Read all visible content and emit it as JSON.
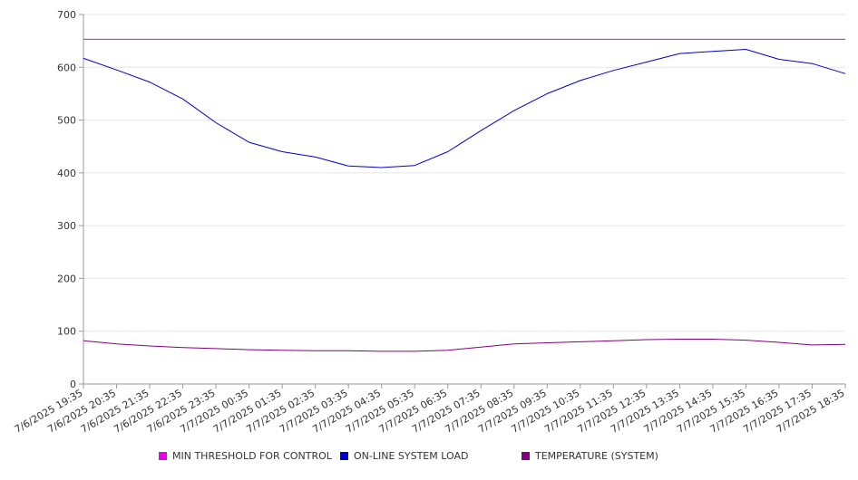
{
  "chart_data": {
    "type": "line",
    "title": "",
    "xlabel": "",
    "ylabel": "",
    "ylim": [
      0,
      700
    ],
    "yticks": [
      0,
      100,
      200,
      300,
      400,
      500,
      600,
      700
    ],
    "grid": true,
    "legend_position": "bottom",
    "x": [
      "7/6/2025 19:35",
      "7/6/2025 20:35",
      "7/6/2025 21:35",
      "7/6/2025 22:35",
      "7/6/2025 23:35",
      "7/7/2025 00:35",
      "7/7/2025 01:35",
      "7/7/2025 02:35",
      "7/7/2025 03:35",
      "7/7/2025 04:35",
      "7/7/2025 05:35",
      "7/7/2025 06:35",
      "7/7/2025 07:35",
      "7/7/2025 08:35",
      "7/7/2025 09:35",
      "7/7/2025 10:35",
      "7/7/2025 11:35",
      "7/7/2025 12:35",
      "7/7/2025 13:35",
      "7/7/2025 14:35",
      "7/7/2025 15:35",
      "7/7/2025 16:35",
      "7/7/2025 17:35",
      "7/7/2025 18:35"
    ],
    "series": [
      {
        "name": "MIN THRESHOLD FOR CONTROL",
        "color": "#e800e8",
        "values": [
          653,
          653,
          653,
          653,
          653,
          653,
          653,
          653,
          653,
          653,
          653,
          653,
          653,
          653,
          653,
          653,
          653,
          653,
          653,
          653,
          653,
          653,
          653,
          653
        ]
      },
      {
        "name": "ON-LINE SYSTEM LOAD",
        "color": "#0000cc",
        "values": [
          617,
          595,
          572,
          540,
          495,
          458,
          440,
          430,
          413,
          410,
          414,
          440,
          480,
          518,
          550,
          575,
          594,
          610,
          626,
          630,
          634,
          615,
          607,
          588
        ]
      },
      {
        "name": "TEMPERATURE (SYSTEM)",
        "color": "#800080",
        "values": [
          82,
          76,
          72,
          69,
          67,
          65,
          64,
          63,
          63,
          62,
          62,
          64,
          70,
          76,
          78,
          80,
          82,
          84,
          85,
          85,
          83,
          79,
          74,
          75
        ]
      }
    ]
  }
}
